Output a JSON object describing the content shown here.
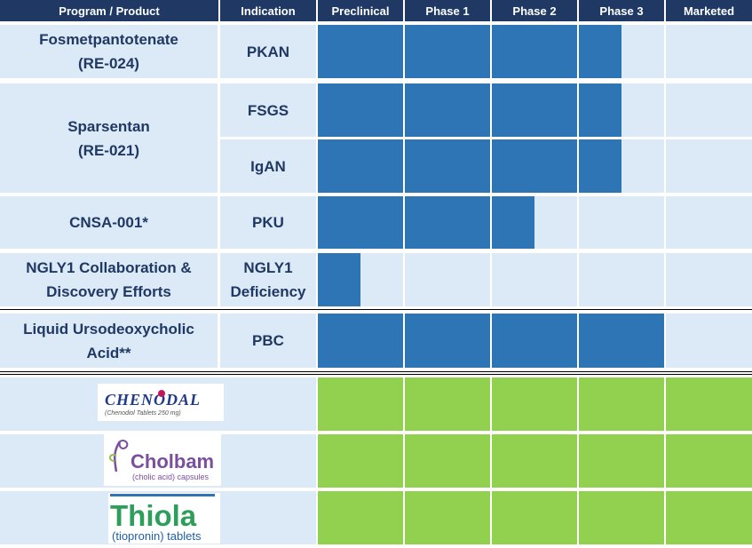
{
  "header": {
    "program": "Program / Product",
    "indication": "Indication",
    "stages": [
      "Preclinical",
      "Phase 1",
      "Phase 2",
      "Phase 3",
      "Marketed"
    ]
  },
  "colors": {
    "header_bg": "#1f3864",
    "cell_bg": "#dce9f6",
    "pipeline_bar": "#2e75b6",
    "marketed_bar": "#92d050",
    "text": "#1f3864"
  },
  "programs": [
    {
      "name": "Fosmetpantotenate\n(RE-024)",
      "indications": [
        {
          "name": "PKAN",
          "progress": 3.5
        }
      ]
    },
    {
      "name": "Sparsentan\n(RE-021)",
      "indications": [
        {
          "name": "FSGS",
          "progress": 3.5
        },
        {
          "name": "IgAN",
          "progress": 3.5
        }
      ]
    },
    {
      "name": "CNSA-001*",
      "indications": [
        {
          "name": "PKU",
          "progress": 2.5
        }
      ]
    },
    {
      "name": "NGLY1 Collaboration &\nDiscovery Efforts",
      "indications": [
        {
          "name": "NGLY1\nDeficiency",
          "progress": 0.5
        }
      ]
    },
    {
      "name": "Liquid Ursodeoxycholic\nAcid**",
      "indications": [
        {
          "name": "PBC",
          "progress": 4
        }
      ]
    }
  ],
  "marketed_products": [
    {
      "name": "Chenodal",
      "logo_text": "CHENODAL",
      "logo_subtext": "(Chenodiol Tablets 250 mg)",
      "progress": 5
    },
    {
      "name": "Cholbam",
      "logo_text": "Cholbam",
      "logo_subtext": "(cholic acid) capsules",
      "progress": 5
    },
    {
      "name": "Thiola",
      "logo_text": "Thiola",
      "logo_subtext": "(tiopronin) tablets",
      "progress": 5
    }
  ],
  "chart_data": {
    "type": "table",
    "columns": [
      "Program / Product",
      "Indication",
      "Preclinical",
      "Phase 1",
      "Phase 2",
      "Phase 3",
      "Marketed"
    ],
    "rows": [
      {
        "program": "Fosmetpantotenate (RE-024)",
        "indication": "PKAN",
        "stages_completed": 3.5
      },
      {
        "program": "Sparsentan (RE-021)",
        "indication": "FSGS",
        "stages_completed": 3.5
      },
      {
        "program": "Sparsentan (RE-021)",
        "indication": "IgAN",
        "stages_completed": 3.5
      },
      {
        "program": "CNSA-001*",
        "indication": "PKU",
        "stages_completed": 2.5
      },
      {
        "program": "NGLY1 Collaboration & Discovery Efforts",
        "indication": "NGLY1 Deficiency",
        "stages_completed": 0.5
      },
      {
        "program": "Liquid Ursodeoxycholic Acid**",
        "indication": "PBC",
        "stages_completed": 4
      },
      {
        "program": "Chenodal",
        "indication": "",
        "stages_completed": 5
      },
      {
        "program": "Cholbam",
        "indication": "",
        "stages_completed": 5
      },
      {
        "program": "Thiola",
        "indication": "",
        "stages_completed": 5
      }
    ]
  }
}
